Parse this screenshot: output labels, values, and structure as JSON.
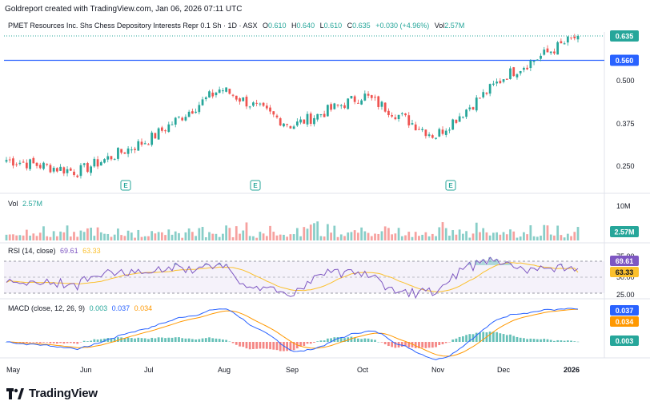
{
  "header": {
    "created_text": "Goldreport created with TradingView.com, Jan 06, 2026 07:11 UTC"
  },
  "legend": {
    "symbol": "PMET Resources Inc. Shs Chess Depository Interests Repr 0.1 Sh · 1D · ASX",
    "o_label": "O",
    "o_value": "0.610",
    "h_label": "H",
    "h_value": "0.640",
    "l_label": "L",
    "l_value": "0.610",
    "c_label": "C",
    "c_value": "0.635",
    "change": "+0.030 (+4.96%)",
    "vol_label": "Vol",
    "vol_value": "2.57M"
  },
  "price_axis": {
    "ticks": [
      "0.500",
      "0.375",
      "0.250"
    ],
    "last_price": "0.635",
    "hline_price": "0.560"
  },
  "earnings_marker": "E",
  "volume_pane": {
    "label": "Vol",
    "value": "2.57M",
    "axis_tick": "10M",
    "badge": "2.57M"
  },
  "rsi_pane": {
    "label": "RSI (14, close)",
    "rsi_value": "69.61",
    "ma_value": "63.33",
    "ticks": [
      "75.00",
      "50.00",
      "25.00"
    ],
    "badge_rsi": "69.61",
    "badge_ma": "63.33"
  },
  "macd_pane": {
    "label": "MACD (close, 12, 26, 9)",
    "hist_value": "0.003",
    "macd_value": "0.037",
    "signal_value": "0.034",
    "badge_macd": "0.037",
    "badge_signal": "0.034",
    "badge_hist": "0.003"
  },
  "time_axis": [
    "May",
    "Jun",
    "Jul",
    "Aug",
    "Sep",
    "Oct",
    "Nov",
    "Dec",
    "2026"
  ],
  "brand": {
    "name": "TradingView"
  },
  "colors": {
    "up": "#26a69a",
    "down": "#ef5350",
    "blue": "#2962ff",
    "orange": "#ff9800",
    "rsi": "#7e57c2",
    "rsi_ma": "#fbc02d",
    "last_price_badge": "#26a69a"
  },
  "chart_data": {
    "type": "candlestick",
    "panes": [
      "price",
      "volume",
      "RSI",
      "MACD"
    ],
    "price_ylim": [
      0.18,
      0.67
    ],
    "price_hline": 0.56,
    "earnings_months": [
      "Jul",
      "Aug",
      "Nov"
    ],
    "monthly_closes": [
      {
        "month": "May",
        "close": 0.27
      },
      {
        "month": "Jun",
        "close": 0.235
      },
      {
        "month": "Jul",
        "close": 0.33
      },
      {
        "month": "Aug",
        "close": 0.48
      },
      {
        "month": "Sep",
        "close": 0.37
      },
      {
        "month": "Oct",
        "close": 0.46
      },
      {
        "month": "Nov",
        "close": 0.34
      },
      {
        "month": "Dec",
        "close": 0.52
      },
      {
        "month": "2026",
        "close": 0.635
      }
    ],
    "last_bar": {
      "open": 0.61,
      "high": 0.64,
      "low": 0.61,
      "close": 0.635,
      "volume": "2.57M"
    },
    "rsi": {
      "value": 69.61,
      "ma": 63.33,
      "levels": [
        75,
        50,
        25
      ]
    },
    "macd": {
      "macd": 0.037,
      "signal": 0.034,
      "histogram": 0.003
    }
  }
}
